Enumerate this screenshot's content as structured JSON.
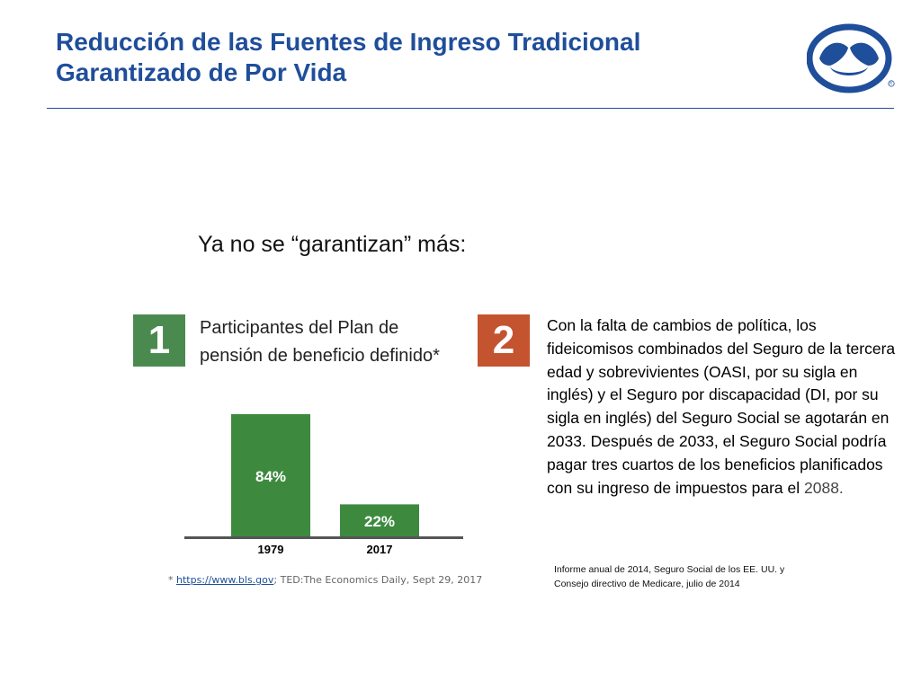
{
  "slide": {
    "title_line1": "Reducción de las Fuentes de Ingreso Tradicional",
    "title_line2": "Garantizado de Por Vida",
    "subtitle": "Ya no se “garantizan” más:"
  },
  "item1": {
    "number": "1",
    "text": "Participantes del Plan de pensión de beneficio definido*",
    "source_prefix": "* ",
    "source_link": "https://www.bls.gov",
    "source_rest": "; TED:The Economics Daily, Sept 29, 2017"
  },
  "item2": {
    "number": "2",
    "text": "Con la falta de cambios de política, los fideicomisos combinados del Seguro de la tercera edad y sobrevivientes (OASI, por su sigla en inglés) y el Seguro por discapacidad (DI, por su sigla en inglés) del Seguro Social se agotarán en 2033. Después de 2033, el Seguro Social podría pagar tres cuartos de los beneficios planificados con su ingreso de impuestos para el ",
    "text_highlight": "2088.",
    "source_line1": "Informe anual de 2014, Seguro Social de los EE. UU. y",
    "source_line2": "Consejo directivo de Medicare, julio de 2014"
  },
  "colors": {
    "title": "#1f4e9a",
    "bar": "#3d8a3f",
    "num1_bg": "#4b8a4f",
    "num2_bg": "#c4532f",
    "baseline": "#555555"
  },
  "chart_data": {
    "type": "bar",
    "categories": [
      "1979",
      "2017"
    ],
    "values": [
      84,
      22
    ],
    "data_labels": [
      "84%",
      "22%"
    ],
    "title": "",
    "xlabel": "",
    "ylabel": "",
    "ylim": [
      0,
      84
    ],
    "grid": false
  }
}
